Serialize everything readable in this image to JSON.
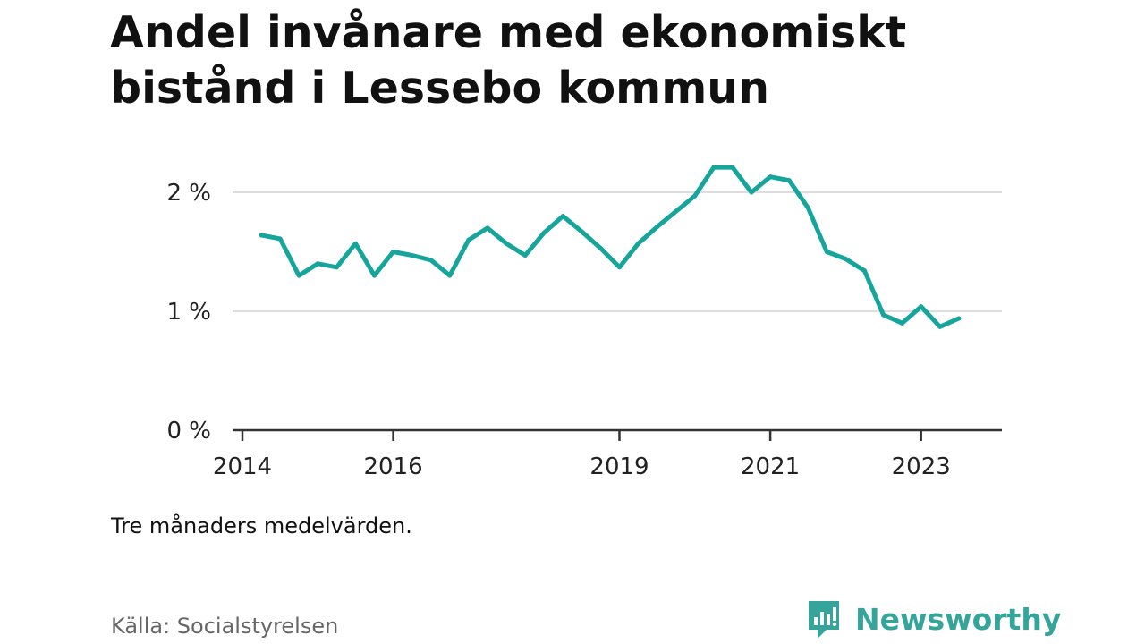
{
  "header": {
    "title_line1": "Andel invånare med ekonomiskt",
    "title_line2": "bistånd i Lessebo kommun"
  },
  "footer": {
    "note": "Tre månaders medelvärden.",
    "source": "Källa: Socialstyrelsen",
    "brand": "Newsworthy"
  },
  "colors": {
    "line": "#15A59B",
    "grid": "#DDDDDD",
    "axis": "#333333",
    "brand": "#35A59B"
  },
  "chart_data": {
    "type": "line",
    "title": "Andel invånare med ekonomiskt bistånd i Lessebo kommun",
    "xlabel": "",
    "ylabel": "",
    "unit": "%",
    "ylim": [
      0,
      2.2
    ],
    "xlim": [
      "2014-01",
      "2024-01"
    ],
    "yticks": [
      {
        "value": 0,
        "label": "0 %"
      },
      {
        "value": 1,
        "label": "1 %"
      },
      {
        "value": 2,
        "label": "2 %"
      }
    ],
    "xticks": [
      {
        "date": "2014-01",
        "label": "2014"
      },
      {
        "date": "2016-01",
        "label": "2016"
      },
      {
        "date": "2019-01",
        "label": "2019"
      },
      {
        "date": "2021-01",
        "label": "2021"
      },
      {
        "date": "2023-01",
        "label": "2023"
      }
    ],
    "grid": true,
    "series": [
      {
        "x": [
          "2014-04",
          "2014-07",
          "2014-10",
          "2015-01",
          "2015-04",
          "2015-07",
          "2015-10",
          "2016-01",
          "2016-04",
          "2016-07",
          "2016-10",
          "2017-01",
          "2017-04",
          "2017-07",
          "2017-10",
          "2018-01",
          "2018-04",
          "2018-07",
          "2018-10",
          "2019-01",
          "2019-04",
          "2019-07",
          "2019-10",
          "2020-01",
          "2020-04",
          "2020-07",
          "2020-10",
          "2021-01",
          "2021-04",
          "2021-07",
          "2021-10",
          "2022-01",
          "2022-04",
          "2022-07",
          "2022-10",
          "2023-01",
          "2023-04",
          "2023-07"
        ],
        "values": [
          1.64,
          1.61,
          1.3,
          1.4,
          1.37,
          1.57,
          1.3,
          1.5,
          1.47,
          1.43,
          1.3,
          1.6,
          1.7,
          1.57,
          1.47,
          1.66,
          1.8,
          1.67,
          1.53,
          1.37,
          1.57,
          1.71,
          1.84,
          1.97,
          2.21,
          2.21,
          2.0,
          2.13,
          2.1,
          1.87,
          1.5,
          1.44,
          1.34,
          0.97,
          0.9,
          1.04,
          0.87,
          0.94
        ]
      }
    ]
  }
}
